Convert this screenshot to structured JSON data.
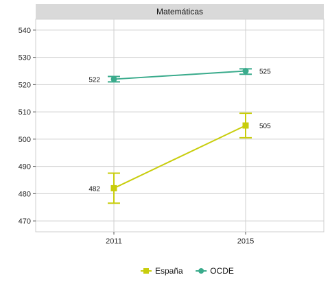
{
  "chart_data": {
    "type": "line",
    "facet_title": "Matemáticas",
    "categories": [
      "2011",
      "2015"
    ],
    "ylim": [
      466,
      544
    ],
    "yticks": [
      470,
      480,
      490,
      500,
      510,
      520,
      530,
      540
    ],
    "grid": true,
    "legend_position": "bottom",
    "series": [
      {
        "name": "España",
        "color": "#c8cd0c",
        "marker": "square",
        "values": [
          482,
          505
        ],
        "lower": [
          476.5,
          500.5
        ],
        "upper": [
          487.5,
          509.5
        ],
        "labels": [
          "482",
          "505"
        ]
      },
      {
        "name": "OCDE",
        "color": "#3aab8c",
        "marker": "circle",
        "values": [
          522,
          525
        ],
        "lower": [
          521,
          523.8
        ],
        "upper": [
          523,
          525.8
        ],
        "labels": [
          "522",
          "525"
        ]
      }
    ]
  }
}
